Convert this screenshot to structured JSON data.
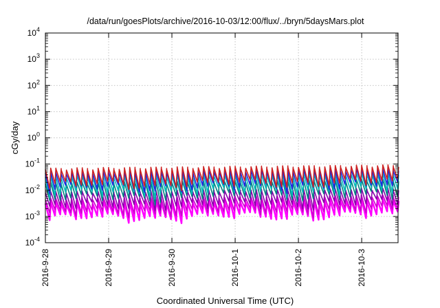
{
  "chart_data": {
    "type": "line",
    "title": "/data/run/goesPlots/archive/2016-10-03/12:00/flux/../bryn/5daysMars.plot",
    "xlabel": "Coordinated Universal Time (UTC)",
    "ylabel": "cGy/day",
    "yscale": "log",
    "ylim": [
      0.0001,
      10000
    ],
    "xlim": [
      "2016-09-28",
      "2016-10-03 13:48"
    ],
    "grid": true,
    "legend": "none",
    "y_ticks": [
      {
        "value": 0.0001,
        "base": "10",
        "exp": "-4"
      },
      {
        "value": 0.001,
        "base": "10",
        "exp": "-3"
      },
      {
        "value": 0.01,
        "base": "10",
        "exp": "-2"
      },
      {
        "value": 0.1,
        "base": "10",
        "exp": "-1"
      },
      {
        "value": 1,
        "base": "10",
        "exp": "0"
      },
      {
        "value": 10,
        "base": "10",
        "exp": "1"
      },
      {
        "value": 100,
        "base": "10",
        "exp": "2"
      },
      {
        "value": 1000,
        "base": "10",
        "exp": "3"
      },
      {
        "value": 10000,
        "base": "10",
        "exp": "4"
      }
    ],
    "x_ticks": [
      {
        "value": "2016-09-28",
        "label": "2016-9-28"
      },
      {
        "value": "2016-09-29",
        "label": "2016-9-29"
      },
      {
        "value": "2016-09-30",
        "label": "2016-9-30"
      },
      {
        "value": "2016-10-01",
        "label": "2016-10-1"
      },
      {
        "value": "2016-10-02",
        "label": "2016-10-2"
      },
      {
        "value": "2016-10-03",
        "label": "2016-10-3"
      }
    ],
    "cycle_hours": 2,
    "series": [
      {
        "color": "#ff00ff",
        "peak": 0.0035,
        "trough": 0.0009
      },
      {
        "color": "#cc00cc",
        "peak": 0.005,
        "trough": 0.0014
      },
      {
        "color": "#8800aa",
        "peak": 0.009,
        "trough": 0.0025
      },
      {
        "color": "#008080",
        "peak": 0.02,
        "trough": 0.005
      },
      {
        "color": "#00bbbb",
        "peak": 0.035,
        "trough": 0.008
      },
      {
        "color": "#2222dd",
        "peak": 0.05,
        "trough": 0.012
      },
      {
        "color": "#cc2222",
        "peak": 0.07,
        "trough": 0.016
      }
    ]
  }
}
